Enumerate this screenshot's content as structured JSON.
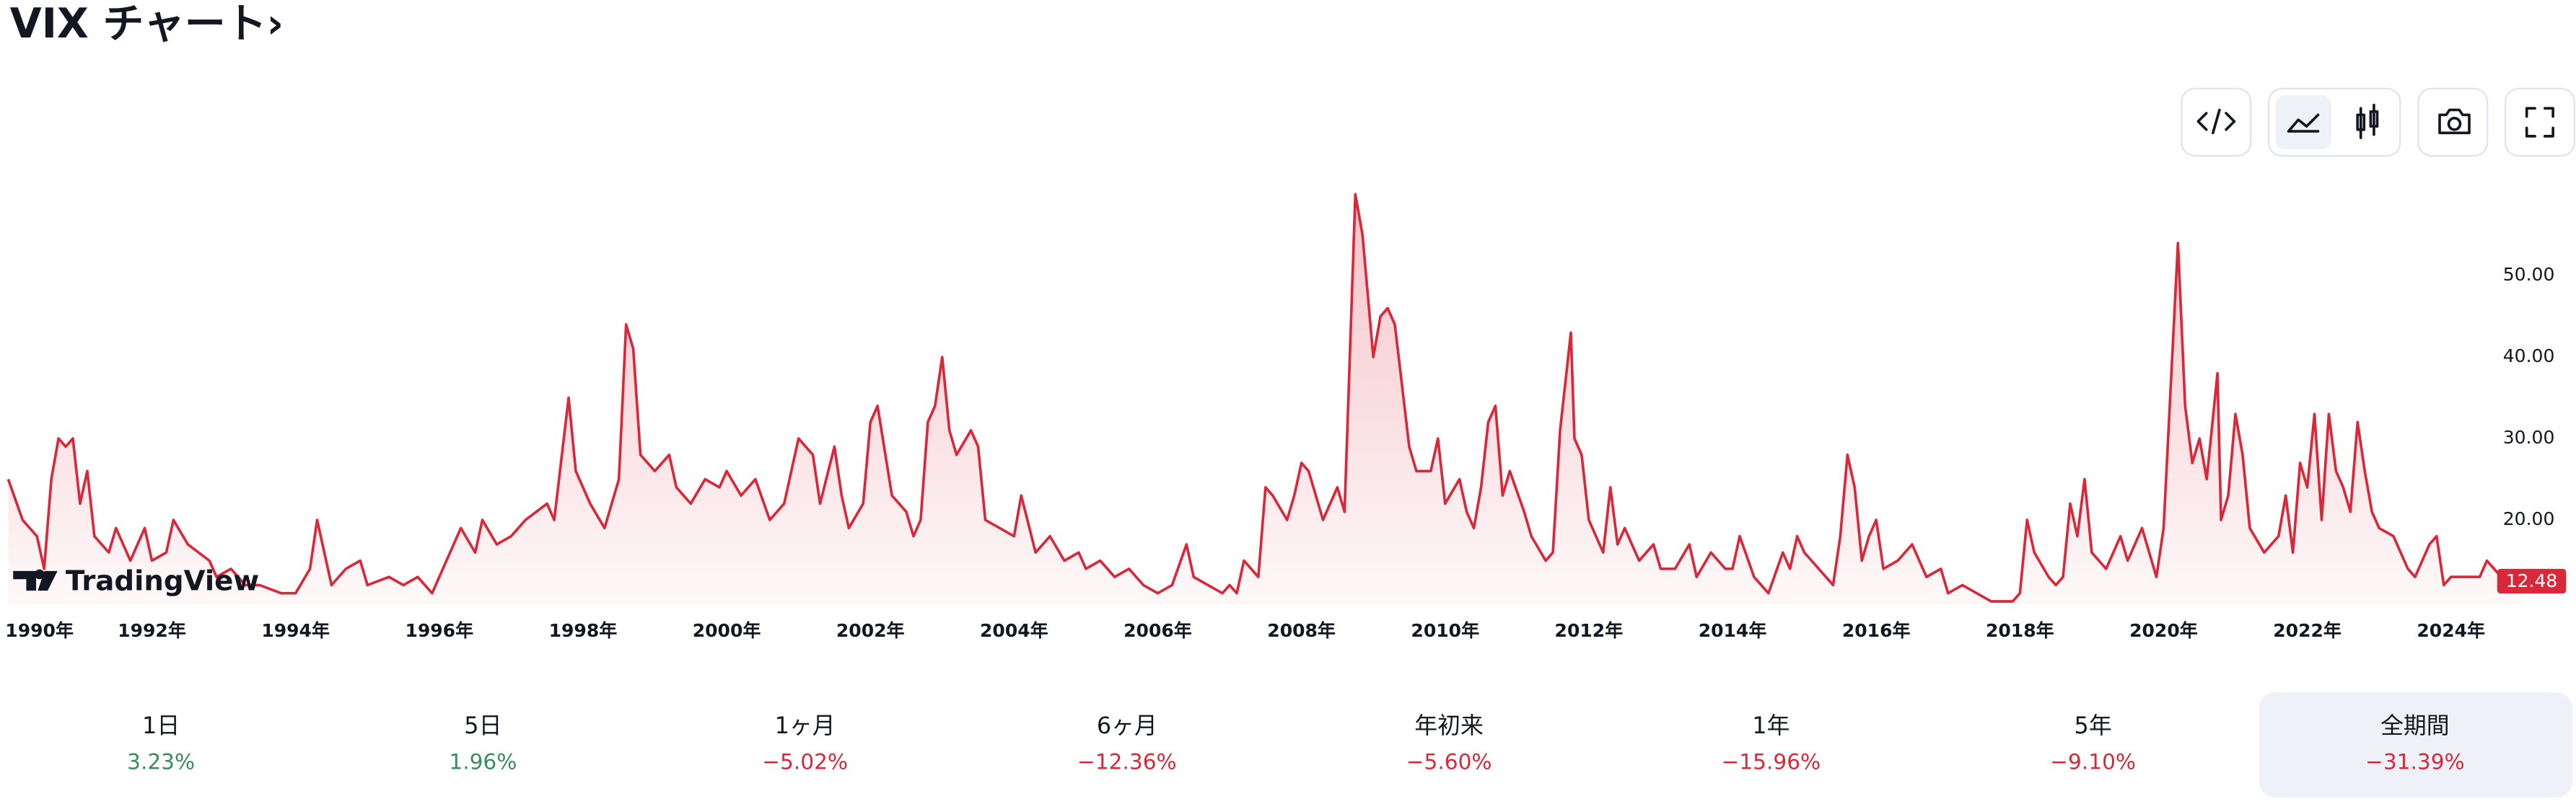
{
  "header": {
    "title": "VIX チャート›"
  },
  "logo": {
    "text": "TradingView"
  },
  "chart_data": {
    "type": "line",
    "color": "#d9283a",
    "grid": false,
    "xlim": [
      1990,
      2025.1
    ],
    "ylim": [
      9.7,
      64.7
    ],
    "yticks": [
      {
        "value": 20,
        "label": "20.00"
      },
      {
        "value": 30,
        "label": "30.00"
      },
      {
        "value": 40,
        "label": "40.00"
      },
      {
        "value": 50,
        "label": "50.00"
      }
    ],
    "xticks": [
      {
        "value": 1990,
        "label": "1990年"
      },
      {
        "value": 1992,
        "label": "1992年"
      },
      {
        "value": 1994,
        "label": "1994年"
      },
      {
        "value": 1996,
        "label": "1996年"
      },
      {
        "value": 1998,
        "label": "1998年"
      },
      {
        "value": 2000,
        "label": "2000年"
      },
      {
        "value": 2002,
        "label": "2002年"
      },
      {
        "value": 2004,
        "label": "2004年"
      },
      {
        "value": 2006,
        "label": "2006年"
      },
      {
        "value": 2008,
        "label": "2008年"
      },
      {
        "value": 2010,
        "label": "2010年"
      },
      {
        "value": 2012,
        "label": "2012年"
      },
      {
        "value": 2014,
        "label": "2014年"
      },
      {
        "value": 2016,
        "label": "2016年"
      },
      {
        "value": 2018,
        "label": "2018年"
      },
      {
        "value": 2020,
        "label": "2020年"
      },
      {
        "value": 2022,
        "label": "2022年"
      },
      {
        "value": 2024,
        "label": "2024年"
      }
    ],
    "x": [
      1990.0,
      1990.2,
      1990.4,
      1990.5,
      1990.6,
      1990.7,
      1990.8,
      1990.9,
      1991.0,
      1991.1,
      1991.2,
      1991.4,
      1991.5,
      1991.7,
      1991.9,
      1992.0,
      1992.2,
      1992.3,
      1992.5,
      1992.8,
      1992.9,
      1993.1,
      1993.3,
      1993.5,
      1993.8,
      1994.0,
      1994.2,
      1994.3,
      1994.5,
      1994.7,
      1994.9,
      1995.0,
      1995.3,
      1995.5,
      1995.7,
      1995.9,
      1996.0,
      1996.2,
      1996.3,
      1996.5,
      1996.6,
      1996.8,
      1997.0,
      1997.2,
      1997.5,
      1997.6,
      1997.8,
      1997.9,
      1998.1,
      1998.3,
      1998.5,
      1998.6,
      1998.7,
      1998.8,
      1999.0,
      1999.2,
      1999.3,
      1999.5,
      1999.7,
      1999.9,
      2000.0,
      2000.2,
      2000.4,
      2000.6,
      2000.8,
      2000.9,
      2001.0,
      2001.2,
      2001.3,
      2001.5,
      2001.6,
      2001.7,
      2001.9,
      2002.0,
      2002.1,
      2002.3,
      2002.5,
      2002.6,
      2002.7,
      2002.8,
      2002.9,
      2003.0,
      2003.1,
      2003.2,
      2003.4,
      2003.5,
      2003.6,
      2003.8,
      2004.0,
      2004.1,
      2004.3,
      2004.5,
      2004.7,
      2004.9,
      2005.0,
      2005.2,
      2005.4,
      2005.6,
      2005.8,
      2006.0,
      2006.2,
      2006.4,
      2006.5,
      2006.7,
      2006.9,
      2007.0,
      2007.1,
      2007.2,
      2007.4,
      2007.5,
      2007.6,
      2007.8,
      2007.9,
      2008.0,
      2008.1,
      2008.3,
      2008.5,
      2008.6,
      2008.75,
      2008.85,
      2009.0,
      2009.1,
      2009.2,
      2009.3,
      2009.5,
      2009.6,
      2009.8,
      2009.9,
      2010.0,
      2010.2,
      2010.3,
      2010.4,
      2010.5,
      2010.6,
      2010.7,
      2010.8,
      2010.9,
      2011.1,
      2011.2,
      2011.4,
      2011.5,
      2011.6,
      2011.75,
      2011.8,
      2011.9,
      2012.0,
      2012.2,
      2012.3,
      2012.4,
      2012.5,
      2012.7,
      2012.9,
      2013.0,
      2013.2,
      2013.4,
      2013.5,
      2013.7,
      2013.9,
      2014.0,
      2014.1,
      2014.3,
      2014.5,
      2014.7,
      2014.8,
      2014.9,
      2015.0,
      2015.2,
      2015.4,
      2015.5,
      2015.6,
      2015.7,
      2015.8,
      2015.9,
      2016.0,
      2016.1,
      2016.3,
      2016.5,
      2016.7,
      2016.9,
      2017.0,
      2017.2,
      2017.4,
      2017.6,
      2017.9,
      2018.0,
      2018.1,
      2018.2,
      2018.4,
      2018.5,
      2018.6,
      2018.7,
      2018.8,
      2018.9,
      2019.0,
      2019.2,
      2019.4,
      2019.5,
      2019.7,
      2019.8,
      2019.9,
      2020.0,
      2020.2,
      2020.3,
      2020.4,
      2020.5,
      2020.6,
      2020.75,
      2020.8,
      2020.9,
      2021.0,
      2021.1,
      2021.2,
      2021.4,
      2021.6,
      2021.7,
      2021.8,
      2021.9,
      2022.0,
      2022.1,
      2022.2,
      2022.3,
      2022.4,
      2022.5,
      2022.6,
      2022.7,
      2022.8,
      2022.9,
      2023.0,
      2023.2,
      2023.3,
      2023.4,
      2023.5,
      2023.7,
      2023.8,
      2023.9,
      2024.0,
      2024.2,
      2024.4,
      2024.5,
      2024.7,
      2024.9,
      2025.0
    ],
    "values": [
      25,
      20,
      18,
      14,
      25,
      30,
      29,
      30,
      22,
      26,
      18,
      16,
      19,
      15,
      19,
      15,
      16,
      20,
      17,
      15,
      13,
      14,
      12,
      12,
      11,
      11,
      14,
      20,
      12,
      14,
      15,
      12,
      13,
      12,
      13,
      11,
      13,
      17,
      19,
      16,
      20,
      17,
      18,
      20,
      22,
      20,
      35,
      26,
      22,
      19,
      25,
      44,
      41,
      28,
      26,
      28,
      24,
      22,
      25,
      24,
      26,
      23,
      25,
      20,
      22,
      26,
      30,
      28,
      22,
      29,
      23,
      19,
      22,
      32,
      34,
      23,
      21,
      18,
      20,
      32,
      34,
      40,
      31,
      28,
      31,
      29,
      20,
      19,
      18,
      23,
      16,
      18,
      15,
      16,
      14,
      15,
      13,
      14,
      12,
      11,
      12,
      17,
      13,
      12,
      11,
      12,
      11,
      15,
      13,
      24,
      23,
      20,
      23,
      27,
      26,
      20,
      24,
      21,
      60,
      55,
      40,
      45,
      46,
      44,
      29,
      26,
      26,
      30,
      22,
      25,
      21,
      19,
      24,
      32,
      34,
      23,
      26,
      21,
      18,
      15,
      16,
      31,
      43,
      30,
      28,
      20,
      16,
      24,
      17,
      19,
      15,
      17,
      14,
      14,
      17,
      13,
      16,
      14,
      14,
      18,
      13,
      11,
      16,
      14,
      18,
      16,
      14,
      12,
      18,
      28,
      24,
      15,
      18,
      20,
      14,
      15,
      17,
      13,
      14,
      11,
      12,
      11,
      10,
      10,
      11,
      20,
      16,
      13,
      12,
      13,
      22,
      18,
      25,
      16,
      14,
      18,
      15,
      19,
      16,
      13,
      19,
      54,
      34,
      27,
      30,
      25,
      38,
      20,
      23,
      33,
      28,
      19,
      16,
      18,
      23,
      16,
      27,
      24,
      33,
      20,
      33,
      26,
      24,
      21,
      32,
      26,
      21,
      19,
      18,
      16,
      14,
      13,
      17,
      18,
      12,
      13,
      13,
      13,
      15,
      13,
      12.5,
      12.48
    ]
  },
  "periods": [
    {
      "label": "1日",
      "change": "3.23%",
      "color": "#3b8c5c",
      "selected": false
    },
    {
      "label": "5日",
      "change": "1.96%",
      "color": "#3b8c5c",
      "selected": false
    },
    {
      "label": "1ヶ月",
      "change": "−5.02%",
      "color": "#d9283a",
      "selected": false
    },
    {
      "label": "6ヶ月",
      "change": "−12.36%",
      "color": "#d9283a",
      "selected": false
    },
    {
      "label": "年初来",
      "change": "−5.60%",
      "color": "#d9283a",
      "selected": false
    },
    {
      "label": "1年",
      "change": "−15.96%",
      "color": "#d9283a",
      "selected": false
    },
    {
      "label": "5年",
      "change": "−9.10%",
      "color": "#d9283a",
      "selected": false
    },
    {
      "label": "全期間",
      "change": "−31.39%",
      "color": "#d9283a",
      "selected": true
    }
  ]
}
